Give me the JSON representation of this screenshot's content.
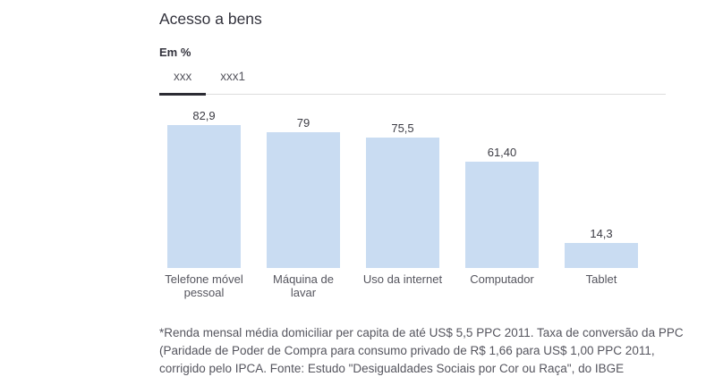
{
  "header": {
    "title": "Acesso a bens",
    "unit_label": "Em %"
  },
  "tabs": [
    {
      "label": "xxx",
      "active": true
    },
    {
      "label": "xxx1",
      "active": false
    }
  ],
  "chart_data": {
    "type": "bar",
    "title": "Acesso a bens",
    "xlabel": "",
    "ylabel": "Em %",
    "ylim": [
      0,
      100
    ],
    "grid": false,
    "legend": false,
    "bar_color": "#c9dcf2",
    "categories": [
      "Telefone móvel pessoal",
      "Máquina de lavar",
      "Uso da internet",
      "Computador",
      "Tablet"
    ],
    "values": [
      82.9,
      79,
      75.5,
      61.4,
      14.3
    ],
    "value_labels": [
      "82,9",
      "79",
      "75,5",
      "61,40",
      "14,3"
    ]
  },
  "footnote": "*Renda mensal média domiciliar per capita de até US$ 5,5 PPC 2011. Taxa de conversão da PPC (Paridade de Poder de Compra para consumo privado de R$ 1,66 para US$ 1,00 PPC 2011, corrigido pelo IPCA. Fonte: Estudo \"Desigualdades Sociais por Cor ou Raça\", do IBGE"
}
